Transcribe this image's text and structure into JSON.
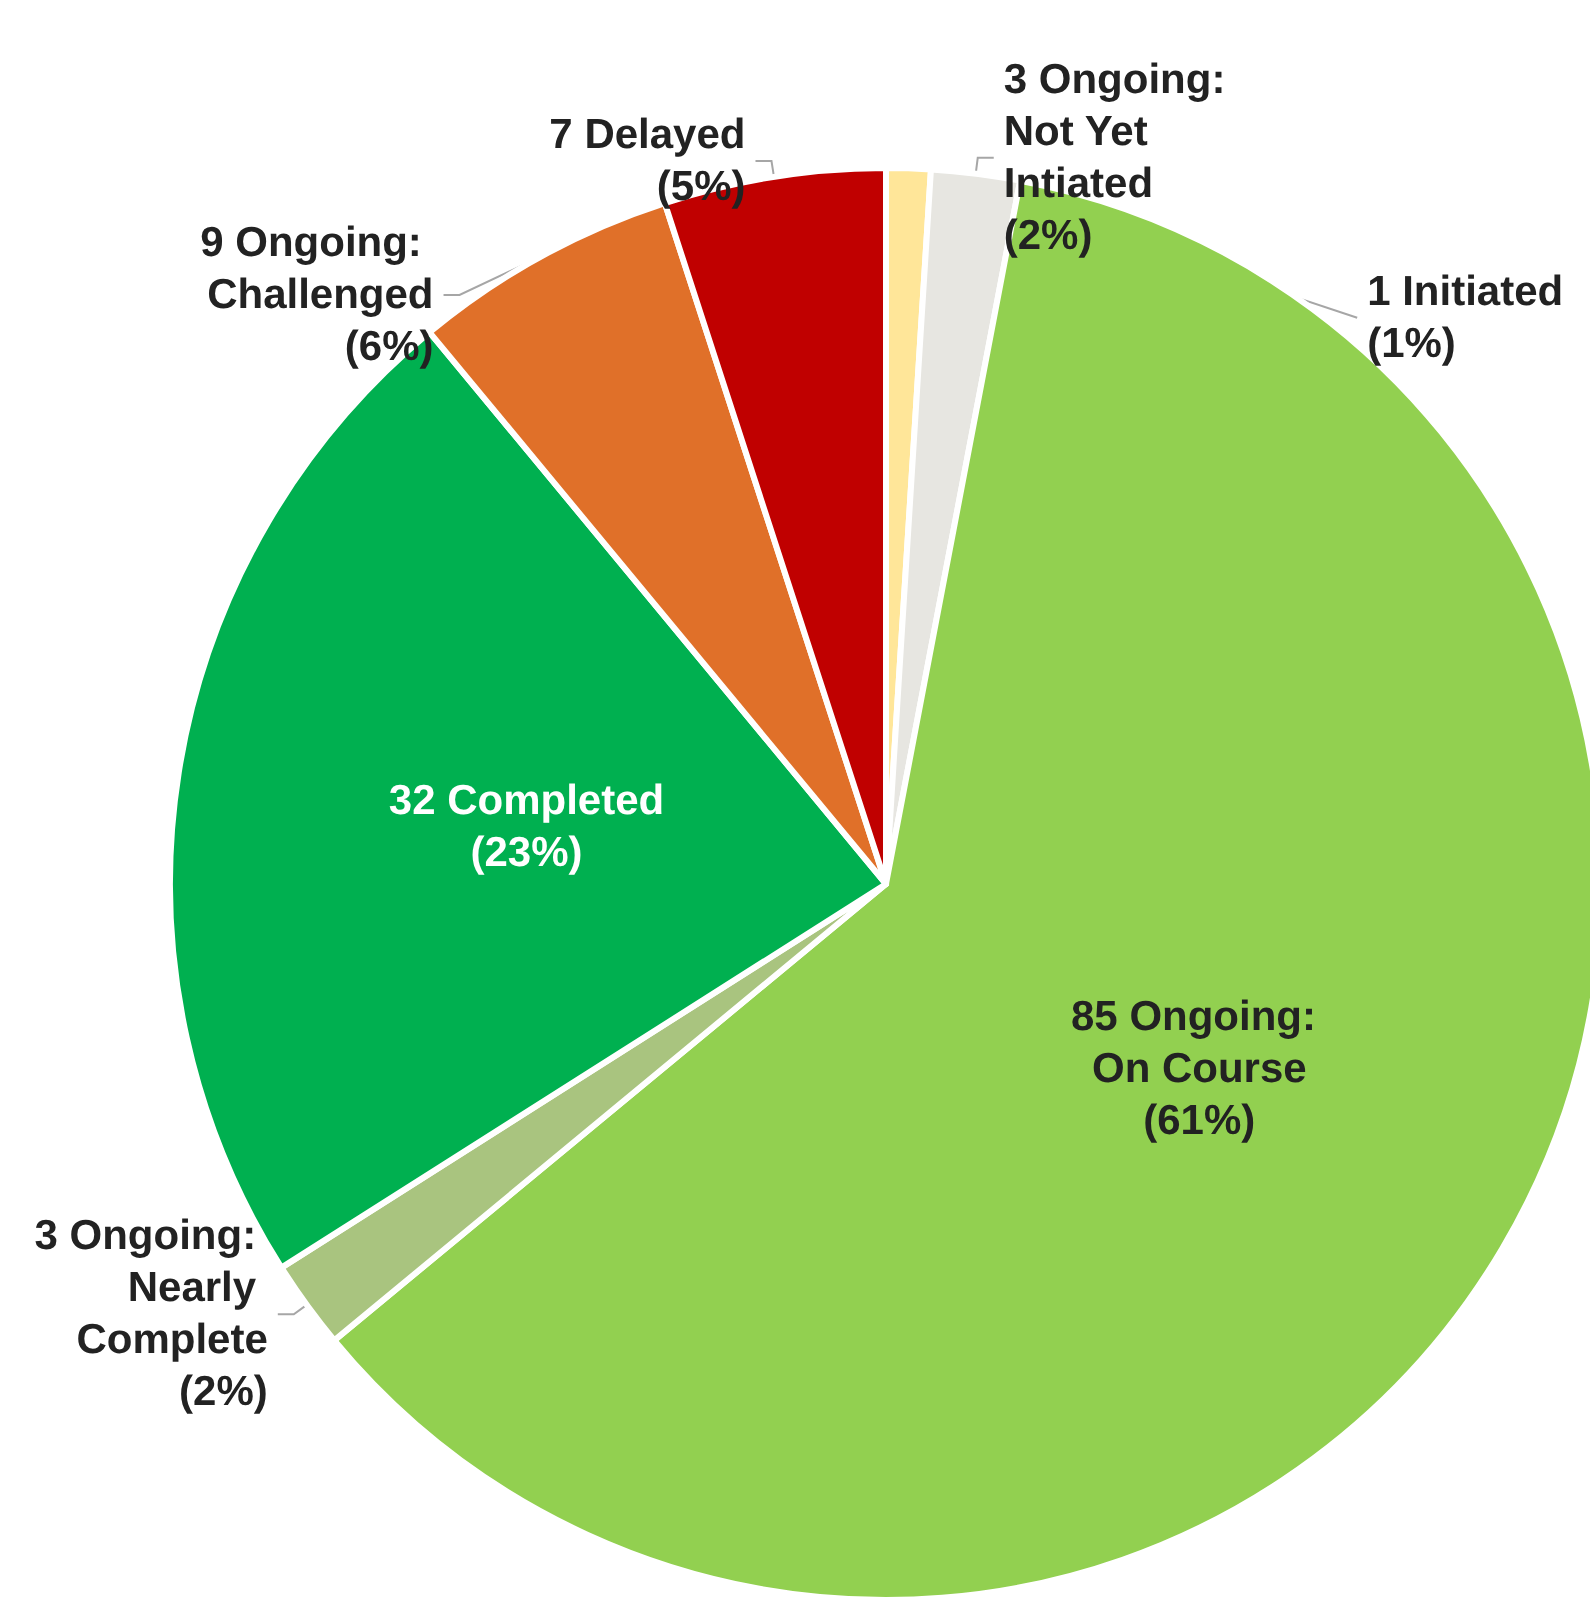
{
  "chart_data": {
    "type": "pie",
    "categories": [
      "1 Initiated",
      "3 Ongoing: Not Yet Intiated",
      "85 Ongoing: On Course",
      "3 Ongoing: Nearly Complete",
      "32 Completed",
      "9 Ongoing: Challenged",
      "7 Delayed"
    ],
    "values": [
      1,
      2,
      61,
      2,
      23,
      6,
      5
    ],
    "value_labels": [
      "(1%)",
      "(2%)",
      "(61%)",
      "(2%)",
      "(23%)",
      "(6%)",
      "(5%)"
    ],
    "colors": [
      "#ffe699",
      "#e7e6e1",
      "#92d050",
      "#a9c47f",
      "#00b050",
      "#e07029",
      "#c00000"
    ],
    "legend": false
  }
}
